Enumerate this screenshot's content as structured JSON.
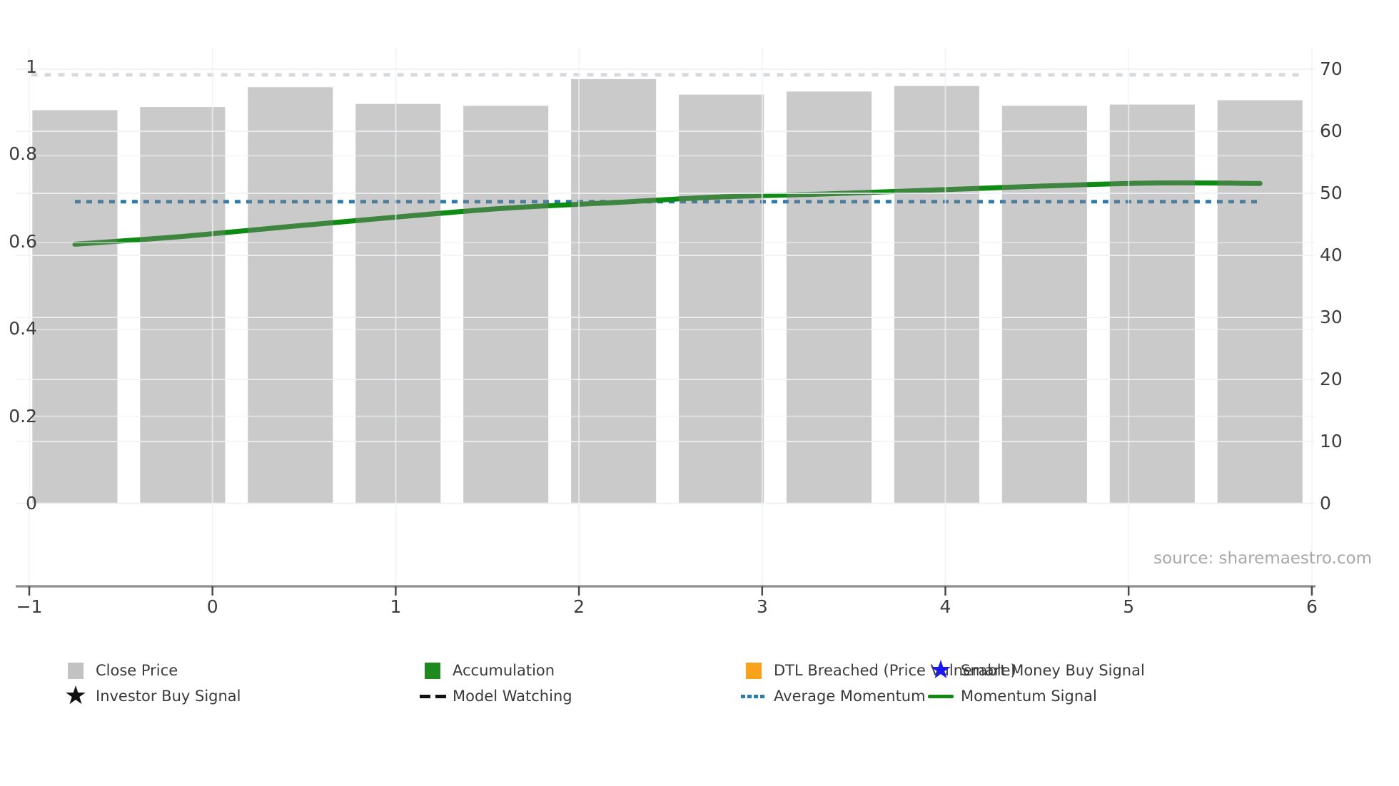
{
  "source_note": "source: sharemaestro.com",
  "colors": {
    "bar_fill": "#c9c9c9",
    "bar_overlay": "rgba(128,128,128,0.42)",
    "momentum_line": "#0e8b12",
    "average_momentum_line": "#2b7bad",
    "model_watching_faint": "rgba(150,156,168,0.38)",
    "accumulation_square": "#1e8a1e",
    "dtl_square": "#f9a21b",
    "smart_money_star": "#1a1af0",
    "investor_star": "#111111",
    "gridline": "#f0f2f6",
    "axis_line": "#949494",
    "tick_text": "#3d3d3d"
  },
  "axes": {
    "x_tick_labels": [
      "−1",
      "0",
      "1",
      "2",
      "3",
      "4",
      "5",
      "6"
    ],
    "y_left_tick_labels": [
      "0",
      "0.2",
      "0.4",
      "0.6",
      "0.8",
      "1"
    ],
    "y_right_tick_labels": [
      "0",
      "10",
      "20",
      "30",
      "40",
      "50",
      "60",
      "70"
    ]
  },
  "chart_data": {
    "type": "combo (bar + line)",
    "title": "",
    "xlabel": "",
    "ylabel_left": "",
    "ylabel_right": "",
    "x_axis": {
      "ticks": [
        -1,
        0,
        1,
        2,
        3,
        4,
        5,
        6
      ],
      "lim": [
        -1.07,
        6.02
      ]
    },
    "y_axis_left": {
      "ticks": [
        0,
        0.2,
        0.4,
        0.6,
        0.8,
        1
      ],
      "lim": [
        0,
        1.03
      ]
    },
    "y_axis_right": {
      "ticks": [
        0,
        10,
        20,
        30,
        40,
        50,
        60,
        70
      ],
      "lim": [
        0,
        72
      ]
    },
    "grid": true,
    "legend_position": "bottom",
    "series": [
      {
        "name": "Close Price",
        "type": "bar",
        "axis": "right",
        "bar_width_units": 0.464,
        "x": [
          -0.751,
          -0.163,
          0.425,
          1.013,
          1.601,
          2.189,
          2.777,
          3.365,
          3.953,
          4.541,
          5.129,
          5.717
        ],
        "values": [
          63.4,
          63.9,
          67.1,
          64.4,
          64.1,
          68.4,
          65.9,
          66.4,
          67.3,
          64.1,
          64.3,
          65.0
        ]
      },
      {
        "name": "Momentum Signal",
        "type": "line",
        "axis": "left",
        "x": [
          -0.751,
          -0.163,
          0.425,
          1.013,
          1.601,
          2.189,
          2.777,
          3.365,
          3.953,
          4.541,
          5.129,
          5.717
        ],
        "values": [
          0.597,
          0.615,
          0.638,
          0.66,
          0.68,
          0.693,
          0.706,
          0.713,
          0.722,
          0.731,
          0.738,
          0.737
        ]
      },
      {
        "name": "Average Momentum",
        "type": "dotted-line",
        "axis": "left",
        "value": 0.695,
        "x_start": -0.751,
        "x_end": 5.717
      },
      {
        "name": "Model Watching",
        "type": "faint-dashed-line",
        "axis": "left",
        "value": 0.987,
        "x_start": -0.99,
        "x_end": 5.95
      }
    ]
  },
  "legend": {
    "items": [
      {
        "label": "Close Price",
        "marker": "square",
        "color": "#c2c2c2",
        "col": 0,
        "row": 0
      },
      {
        "label": "Accumulation",
        "marker": "square",
        "color": "#1e8a1e",
        "col": 1,
        "row": 0
      },
      {
        "label": "DTL Breached (Price Vulnerable)",
        "marker": "square",
        "color": "#f9a21b",
        "col": 2,
        "row": 0
      },
      {
        "label": "Smart Money Buy Signal",
        "marker": "star",
        "color": "#1a1af0",
        "col": 3,
        "row": 0
      },
      {
        "label": "Investor Buy Signal",
        "marker": "star",
        "color": "#111111",
        "col": 0,
        "row": 1
      },
      {
        "label": "Model Watching",
        "marker": "dashes",
        "color": "#111111",
        "col": 1,
        "row": 1
      },
      {
        "label": "Average Momentum",
        "marker": "dotted",
        "color": "#2b7bad",
        "col": 2,
        "row": 1
      },
      {
        "label": "Momentum Signal",
        "marker": "line",
        "color": "#128912",
        "col": 3,
        "row": 1
      }
    ]
  }
}
